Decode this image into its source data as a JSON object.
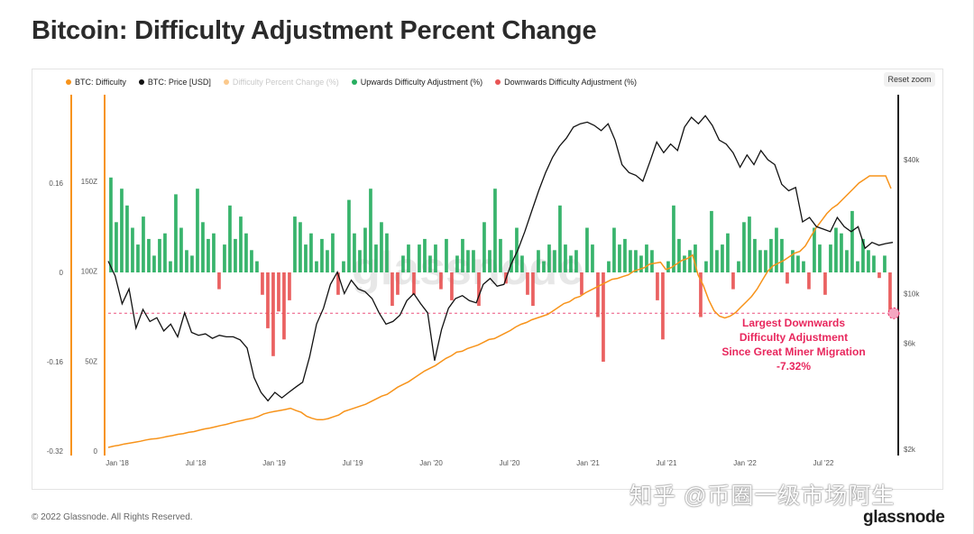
{
  "title": "Bitcoin: Difficulty Adjustment Percent Change",
  "reset_label": "Reset zoom",
  "footer": "© 2022 Glassnode. All Rights Reserved.",
  "brand": "glassnode",
  "watermark_cn": "知乎 @币圈一级市场阿生",
  "chart_watermark": "glassnode",
  "legend": [
    {
      "label": "BTC: Difficulty",
      "color": "#f7931a",
      "faded": false
    },
    {
      "label": "BTC: Price [USD]",
      "color": "#111111",
      "faded": false
    },
    {
      "label": "Difficulty Percent Change (%)",
      "color": "#f7931a",
      "faded": true
    },
    {
      "label": "Upwards Difficulty Adjustment (%)",
      "color": "#27ae60",
      "faded": false
    },
    {
      "label": "Downwards Difficulty Adjustment (%)",
      "color": "#e85454",
      "faded": false
    }
  ],
  "annotation": {
    "lines": [
      "Largest Downwards",
      "Difficulty Adjustment",
      "Since Great Miner Migration",
      "-7.32%"
    ],
    "value": -0.0732,
    "color": "#e8275d"
  },
  "chart_data": {
    "type": "bar",
    "x_ticks": [
      "Jan '18",
      "Jul '18",
      "Jan '19",
      "Jul '19",
      "Jan '20",
      "Jul '20",
      "Jan '21",
      "Jul '21",
      "Jan '22",
      "Jul '22"
    ],
    "x_range": [
      2017.96,
      2022.96
    ],
    "axes": {
      "pct_change": {
        "ticks": [
          "0.16",
          "0",
          "-0.16",
          "-0.32"
        ],
        "values": [
          0.16,
          0,
          -0.16,
          -0.32
        ],
        "range": [
          -0.32,
          0.16
        ]
      },
      "difficulty": {
        "ticks": [
          "150Z",
          "100Z",
          "50Z",
          "0"
        ],
        "values": [
          150,
          100,
          50,
          0
        ],
        "range": [
          0,
          150
        ]
      },
      "price": {
        "ticks": [
          "$40k",
          "$10k",
          "$6k",
          "$2k"
        ],
        "values": [
          40000,
          10000,
          6000,
          2000
        ],
        "scale": "log"
      }
    },
    "pct_change": [
      0.17,
      0.09,
      0.15,
      0.12,
      0.08,
      0.05,
      0.1,
      0.06,
      0.03,
      0.06,
      0.07,
      0.02,
      0.14,
      0.08,
      0.04,
      0.03,
      0.15,
      0.09,
      0.06,
      0.07,
      -0.03,
      0.05,
      0.12,
      0.06,
      0.1,
      0.07,
      0.04,
      0.02,
      -0.04,
      -0.1,
      -0.15,
      -0.07,
      -0.12,
      -0.05,
      0.1,
      0.09,
      0.05,
      0.07,
      0.02,
      0.06,
      0.04,
      0.07,
      -0.04,
      0.02,
      0.13,
      0.07,
      0.04,
      0.08,
      0.15,
      0.05,
      0.09,
      0.07,
      -0.06,
      -0.04,
      0.03,
      0.05,
      -0.04,
      0.05,
      0.06,
      0.03,
      0.05,
      -0.03,
      0.06,
      -0.05,
      0.03,
      0.06,
      0.04,
      0.04,
      -0.06,
      0.09,
      0.04,
      0.15,
      0.06,
      -0.02,
      0.04,
      0.08,
      0.03,
      -0.04,
      -0.06,
      0.04,
      0.02,
      0.05,
      0.04,
      0.12,
      0.05,
      0.03,
      0.04,
      -0.04,
      0.08,
      0.05,
      -0.08,
      -0.16,
      0.02,
      0.08,
      0.05,
      0.06,
      0.04,
      0.04,
      0.03,
      0.05,
      0.04,
      -0.05,
      -0.12,
      0.02,
      0.12,
      0.06,
      0.03,
      0.04,
      0.05,
      -0.08,
      0.02,
      0.11,
      0.04,
      0.05,
      0.07,
      -0.03,
      0.02,
      0.09,
      0.1,
      0.06,
      0.04,
      0.04,
      0.06,
      0.08,
      0.06,
      -0.02,
      0.04,
      0.03,
      0.02,
      -0.03,
      0.08,
      0.05,
      -0.04,
      0.05,
      0.08,
      0.07,
      0.04,
      0.11,
      0.02,
      0.06,
      0.04,
      0.03,
      -0.01,
      0.03,
      -0.0732
    ],
    "difficulty_Z": [
      2,
      2.7,
      3.2,
      3.9,
      4.4,
      4.9,
      5.4,
      6.1,
      6.6,
      6.9,
      7.4,
      8.1,
      8.6,
      9.3,
      9.7,
      10.4,
      10.8,
      11.6,
      12.3,
      12.8,
      13.5,
      14.2,
      14.8,
      15.6,
      16.4,
      17,
      17.7,
      18.2,
      19.2,
      20.6,
      21.4,
      22,
      22.5,
      23.1,
      23.8,
      22.5,
      21.5,
      19.3,
      18.2,
      17.4,
      17.4,
      18,
      19,
      20,
      22,
      23,
      24,
      25,
      26,
      27.5,
      29,
      30.5,
      31.5,
      33.5,
      35.5,
      37,
      38.5,
      40.5,
      42.5,
      44.5,
      46,
      47.5,
      49.5,
      51.5,
      53,
      55,
      55.5,
      57,
      58,
      59,
      60.5,
      62,
      62.5,
      64,
      65.5,
      67,
      69,
      70.5,
      71.5,
      73,
      74,
      75,
      76,
      78,
      80,
      82,
      83,
      85,
      86,
      88,
      89.5,
      91,
      92.5,
      94,
      95.5,
      96,
      97,
      98,
      100,
      101,
      102,
      104,
      104.5,
      105,
      101,
      102,
      104,
      106,
      107,
      109,
      98,
      92,
      84,
      78,
      75,
      74,
      75,
      77,
      80,
      83,
      86,
      90,
      95,
      100,
      103,
      104.5,
      106,
      108,
      110,
      111,
      114,
      119,
      124,
      128,
      132,
      135,
      137,
      140,
      143,
      146,
      149,
      151,
      153,
      153,
      153,
      153,
      146
    ],
    "price_usd": [
      14000,
      12000,
      9000,
      10500,
      7000,
      8500,
      7500,
      7800,
      6800,
      7300,
      6400,
      8200,
      6700,
      6500,
      6600,
      6300,
      6500,
      6400,
      6400,
      6200,
      5700,
      4200,
      3600,
      3300,
      3600,
      3400,
      3600,
      3800,
      4000,
      5200,
      7300,
      8600,
      11000,
      12500,
      10000,
      11500,
      10500,
      10200,
      9500,
      8200,
      7300,
      7500,
      8000,
      9300,
      10000,
      9000,
      8200,
      5000,
      6900,
      8600,
      9500,
      9800,
      9300,
      9100,
      11000,
      11700,
      10800,
      11000,
      13500,
      15700,
      19000,
      23500,
      29000,
      35000,
      41000,
      46000,
      50000,
      56000,
      58000,
      59000,
      57000,
      54000,
      58000,
      49000,
      38000,
      35000,
      34000,
      32000,
      39000,
      48000,
      43000,
      47000,
      44000,
      56000,
      62000,
      58000,
      63000,
      57000,
      49000,
      47000,
      43000,
      37000,
      42000,
      38000,
      44000,
      40000,
      38000,
      31000,
      29000,
      30000,
      21000,
      22000,
      20000,
      19500,
      19000,
      22000,
      20000,
      19000,
      20000,
      16000,
      17000,
      16500,
      16800,
      17000
    ],
    "annotation_value": -0.0732
  }
}
